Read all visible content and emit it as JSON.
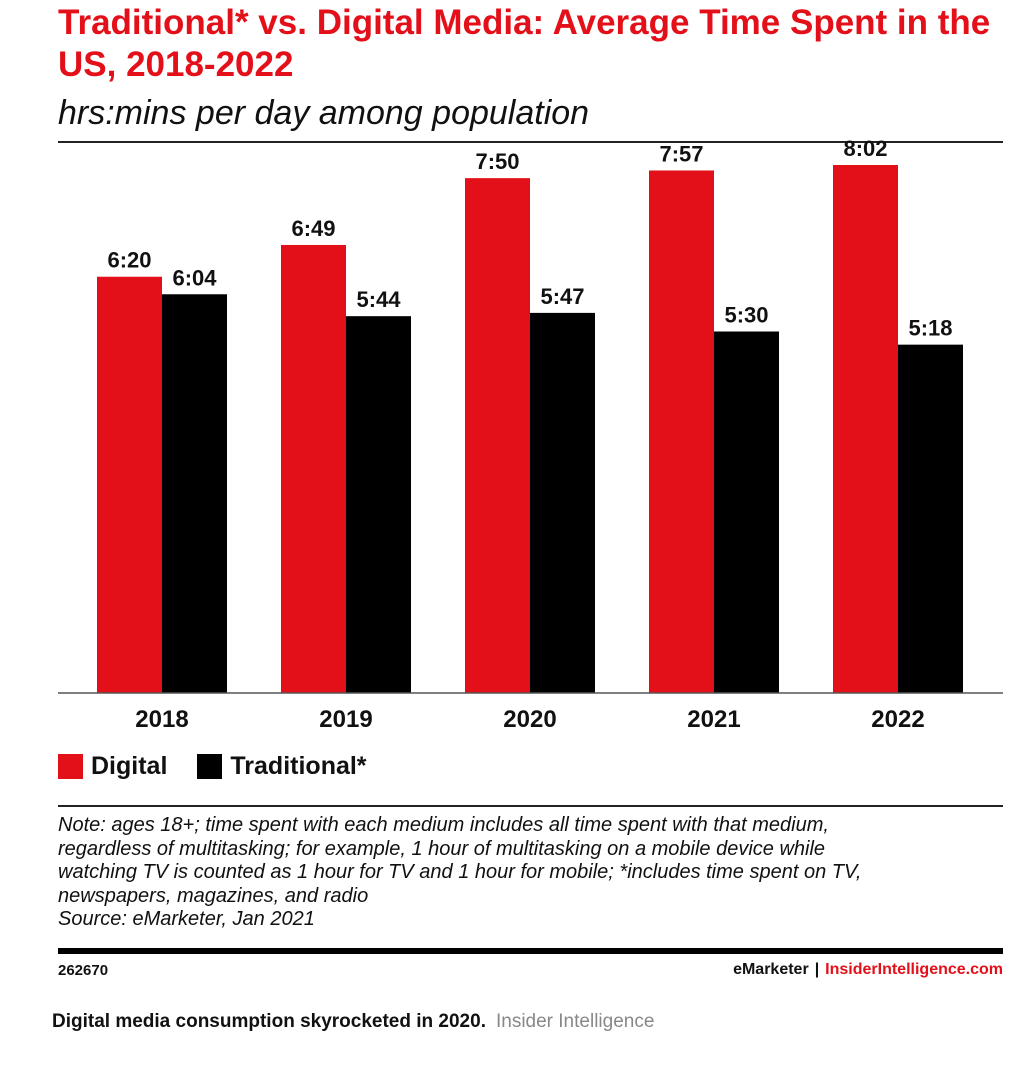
{
  "title": "Traditional* vs. Digital Media: Average Time Spent in the US, 2018-2022",
  "subtitle": "hrs:mins per day among population",
  "colors": {
    "digital": "#e3101a",
    "traditional": "#000000",
    "accent": "#e3101a"
  },
  "chart_data": {
    "type": "bar",
    "title": "Traditional* vs. Digital Media: Average Time Spent in the US, 2018-2022",
    "subtitle": "hrs:mins per day among population",
    "categories": [
      "2018",
      "2019",
      "2020",
      "2021",
      "2022"
    ],
    "series": [
      {
        "name": "Digital",
        "values": [
          380,
          409,
          470,
          477,
          482
        ],
        "labels": [
          "6:20",
          "6:49",
          "7:50",
          "7:57",
          "8:02"
        ]
      },
      {
        "name": "Traditional*",
        "values": [
          364,
          344,
          347,
          330,
          318
        ],
        "labels": [
          "6:04",
          "5:44",
          "5:47",
          "5:30",
          "5:18"
        ]
      }
    ],
    "ylim": [
      0,
      520
    ],
    "grid": false,
    "legend": "bottom-left"
  },
  "legend": {
    "digital": "Digital",
    "traditional": "Traditional*"
  },
  "note": [
    "Note: ages 18+; time spent with each medium includes all time spent with that medium,",
    "regardless of multitasking; for example, 1 hour of multitasking on a mobile device while",
    "watching TV is counted as 1 hour for TV and 1 hour for mobile; *includes time spent on TV,",
    "newspapers, magazines, and radio",
    "Source: eMarketer, Jan 2021"
  ],
  "footer": {
    "id": "262670",
    "brand_left": "eMarketer",
    "separator": "|",
    "brand_right": "InsiderIntelligence.com"
  },
  "caption": {
    "text": "Digital media consumption skyrocketed in 2020.",
    "credit": "Insider Intelligence"
  }
}
